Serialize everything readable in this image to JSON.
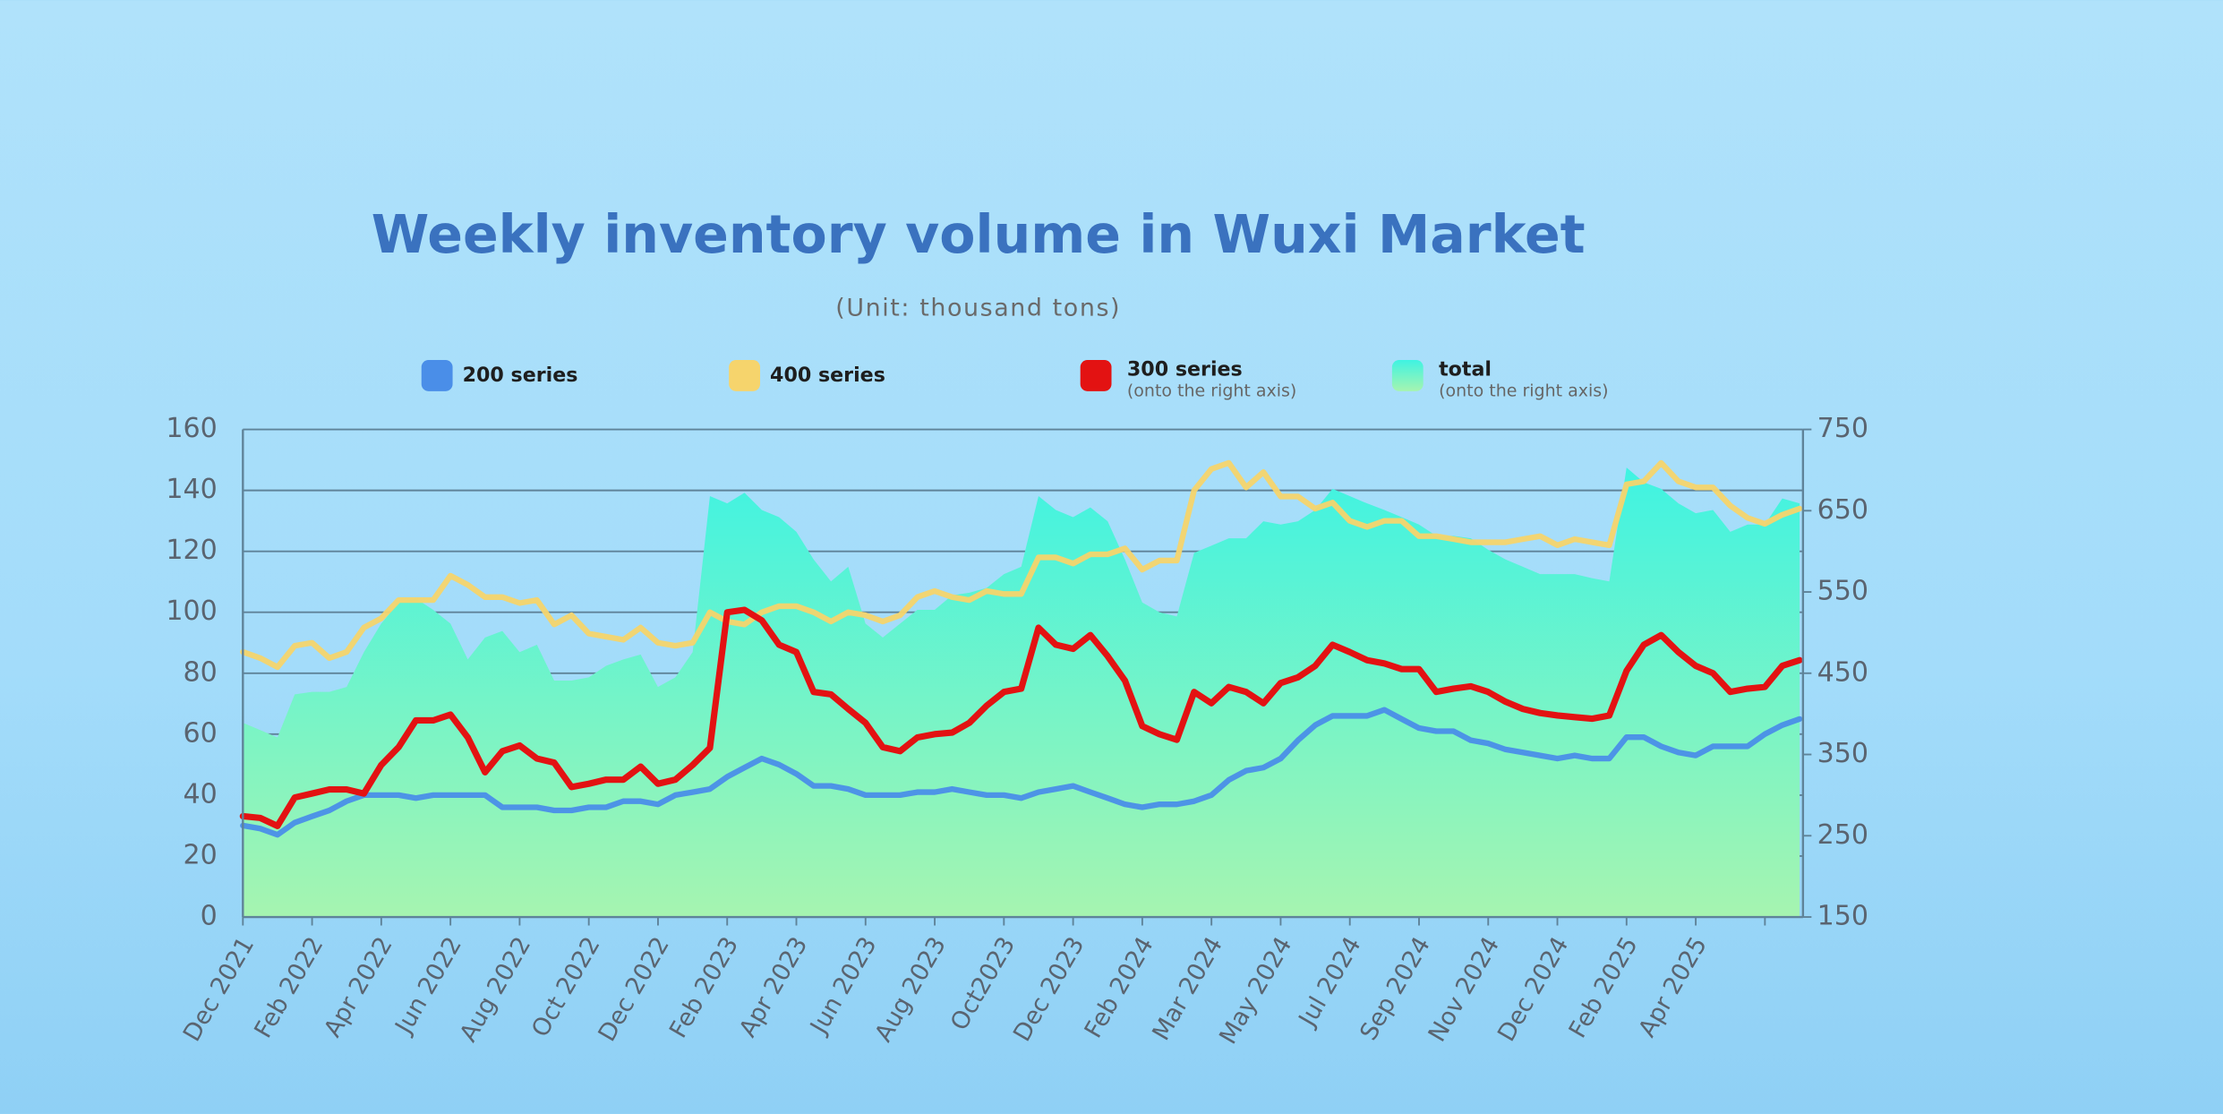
{
  "chart_data": {
    "type": "line",
    "title": "Weekly inventory volume in Wuxi Market",
    "subtitle": "(Unit: thousand tons)",
    "categories": [
      "Dec 2021",
      null,
      null,
      null,
      "Feb 2022",
      null,
      null,
      null,
      "Apr 2022",
      null,
      null,
      null,
      "Jun 2022",
      null,
      null,
      null,
      "Aug 2022",
      null,
      null,
      null,
      "Oct 2022",
      null,
      null,
      null,
      "Dec 2022",
      null,
      null,
      null,
      "Feb 2023",
      null,
      null,
      null,
      "Apr 2023",
      null,
      null,
      null,
      "Jun 2023",
      null,
      null,
      null,
      "Aug 2023",
      null,
      null,
      null,
      "Oct2023",
      null,
      null,
      null,
      "Dec 2023",
      null,
      null,
      null,
      "Feb 2024",
      null,
      null,
      null,
      "Mar 2024",
      null,
      null,
      null,
      "May 2024",
      null,
      null,
      null,
      "Jul 2024",
      null,
      null,
      null,
      "Sep 2024",
      null,
      null,
      null,
      "Nov 2024",
      null,
      null,
      null,
      "Dec 2024",
      null,
      null,
      null,
      "Feb 2025",
      null,
      null,
      null,
      "Apr 2025",
      null,
      null,
      null,
      null,
      null,
      null
    ],
    "ylim": [
      0,
      160
    ],
    "yticks": [
      0,
      20,
      40,
      60,
      80,
      100,
      120,
      140,
      160
    ],
    "y2lim": [
      150,
      750
    ],
    "y2ticks": [
      150,
      250,
      350,
      450,
      550,
      650,
      750
    ],
    "grid": true,
    "series": [
      {
        "name": "total",
        "note": "(onto the right axis)",
        "kind": "area",
        "axis": "y2",
        "color": "#3ff3e2",
        "values": [
          389,
          380,
          371,
          424,
          427,
          427,
          433,
          476,
          511,
          537,
          542,
          528,
          511,
          467,
          494,
          502,
          476,
          485,
          441,
          441,
          445,
          459,
          467,
          473,
          433,
          445,
          476,
          668,
          659,
          672,
          651,
          642,
          624,
          590,
          563,
          581,
          511,
          494,
          511,
          528,
          528,
          546,
          549,
          555,
          572,
          581,
          668,
          651,
          642,
          654,
          637,
          590,
          537,
          525,
          520,
          598,
          607,
          616,
          616,
          637,
          633,
          637,
          651,
          677,
          668,
          659,
          651,
          642,
          633,
          619,
          619,
          616,
          602,
          590,
          581,
          572,
          572,
          572,
          567,
          563,
          703,
          685,
          677,
          659,
          647,
          651,
          624,
          633,
          633,
          665,
          659
        ]
      },
      {
        "name": "200 series",
        "kind": "line",
        "color": "#4a8ee8",
        "values": [
          30,
          29,
          27,
          31,
          33,
          35,
          38,
          40,
          40,
          40,
          39,
          40,
          40,
          40,
          40,
          36,
          36,
          36,
          35,
          35,
          36,
          36,
          38,
          38,
          37,
          40,
          41,
          42,
          46,
          49,
          52,
          50,
          47,
          43,
          43,
          42,
          40,
          40,
          40,
          41,
          41,
          42,
          41,
          40,
          40,
          39,
          41,
          42,
          43,
          41,
          39,
          37,
          36,
          37,
          37,
          38,
          40,
          45,
          48,
          49,
          52,
          58,
          63,
          66,
          66,
          66,
          68,
          65,
          62,
          61,
          61,
          58,
          57,
          55,
          54,
          53,
          52,
          53,
          52,
          52,
          59,
          59,
          56,
          54,
          53,
          56,
          56,
          56,
          60,
          63,
          65
        ]
      },
      {
        "name": "400 series",
        "kind": "line",
        "color": "#f6d46c",
        "values": [
          87,
          85,
          82,
          89,
          90,
          85,
          87,
          95,
          98,
          104,
          104,
          104,
          112,
          109,
          105,
          105,
          103,
          104,
          96,
          99,
          93,
          92,
          91,
          95,
          90,
          89,
          90,
          100,
          97,
          96,
          100,
          102,
          102,
          100,
          97,
          100,
          99,
          97,
          99,
          105,
          107,
          105,
          104,
          107,
          106,
          106,
          118,
          118,
          116,
          119,
          119,
          121,
          114,
          117,
          117,
          140,
          147,
          149,
          141,
          146,
          138,
          138,
          134,
          136,
          130,
          128,
          130,
          130,
          125,
          125,
          124,
          123,
          123,
          123,
          124,
          125,
          122,
          124,
          123,
          122,
          142,
          143,
          149,
          143,
          141,
          141,
          135,
          131,
          129,
          132,
          134
        ]
      },
      {
        "name": "300 series",
        "note": "(onto the right axis)",
        "kind": "line",
        "axis": "y2",
        "color": "#e31212",
        "values": [
          274,
          272,
          262,
          297,
          302,
          307,
          307,
          302,
          337,
          359,
          392,
          392,
          399,
          371,
          328,
          354,
          361,
          345,
          340,
          310,
          314,
          319,
          319,
          335,
          314,
          319,
          337,
          358,
          525,
          528,
          515,
          485,
          476,
          427,
          424,
          406,
          389,
          359,
          354,
          371,
          375,
          377,
          389,
          410,
          427,
          431,
          506,
          485,
          480,
          497,
          471,
          441,
          385,
          375,
          368,
          427,
          413,
          433,
          427,
          413,
          438,
          445,
          459,
          485,
          476,
          466,
          462,
          455,
          455,
          427,
          431,
          434,
          427,
          415,
          406,
          401,
          398,
          396,
          394,
          398,
          453,
          485,
          497,
          476,
          459,
          450,
          427,
          431,
          433,
          459,
          466
        ]
      }
    ],
    "legend_order": [
      1,
      2,
      3,
      0
    ]
  }
}
